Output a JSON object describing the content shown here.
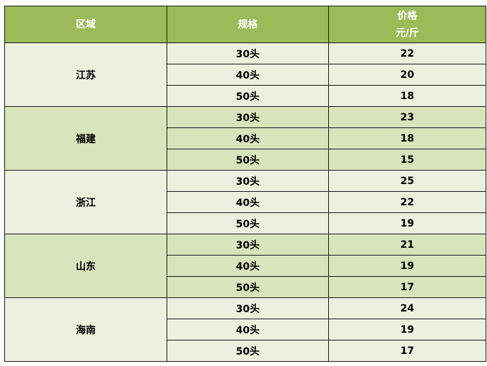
{
  "headers": {
    "region": "区域",
    "spec": "规格",
    "price": "价格",
    "price_unit": "元/斤"
  },
  "colors": {
    "header_bg": "#9BBB59",
    "row_light": "#EBF1DE",
    "row_dark": "#D7E4BC"
  },
  "groups": [
    {
      "region": "江苏",
      "rows": [
        {
          "spec": "30头",
          "price": "22"
        },
        {
          "spec": "40头",
          "price": "20"
        },
        {
          "spec": "50头",
          "price": "18"
        }
      ]
    },
    {
      "region": "福建",
      "rows": [
        {
          "spec": "30头",
          "price": "23"
        },
        {
          "spec": "40头",
          "price": "18"
        },
        {
          "spec": "50头",
          "price": "15"
        }
      ]
    },
    {
      "region": "浙江",
      "rows": [
        {
          "spec": "30头",
          "price": "25"
        },
        {
          "spec": "40头",
          "price": "22"
        },
        {
          "spec": "50头",
          "price": "19"
        }
      ]
    },
    {
      "region": "山东",
      "rows": [
        {
          "spec": "30头",
          "price": "21"
        },
        {
          "spec": "40头",
          "price": "19"
        },
        {
          "spec": "50头",
          "price": "17"
        }
      ]
    },
    {
      "region": "海南",
      "rows": [
        {
          "spec": "30头",
          "price": "24"
        },
        {
          "spec": "40头",
          "price": "19"
        },
        {
          "spec": "50头",
          "price": "17"
        }
      ]
    }
  ]
}
